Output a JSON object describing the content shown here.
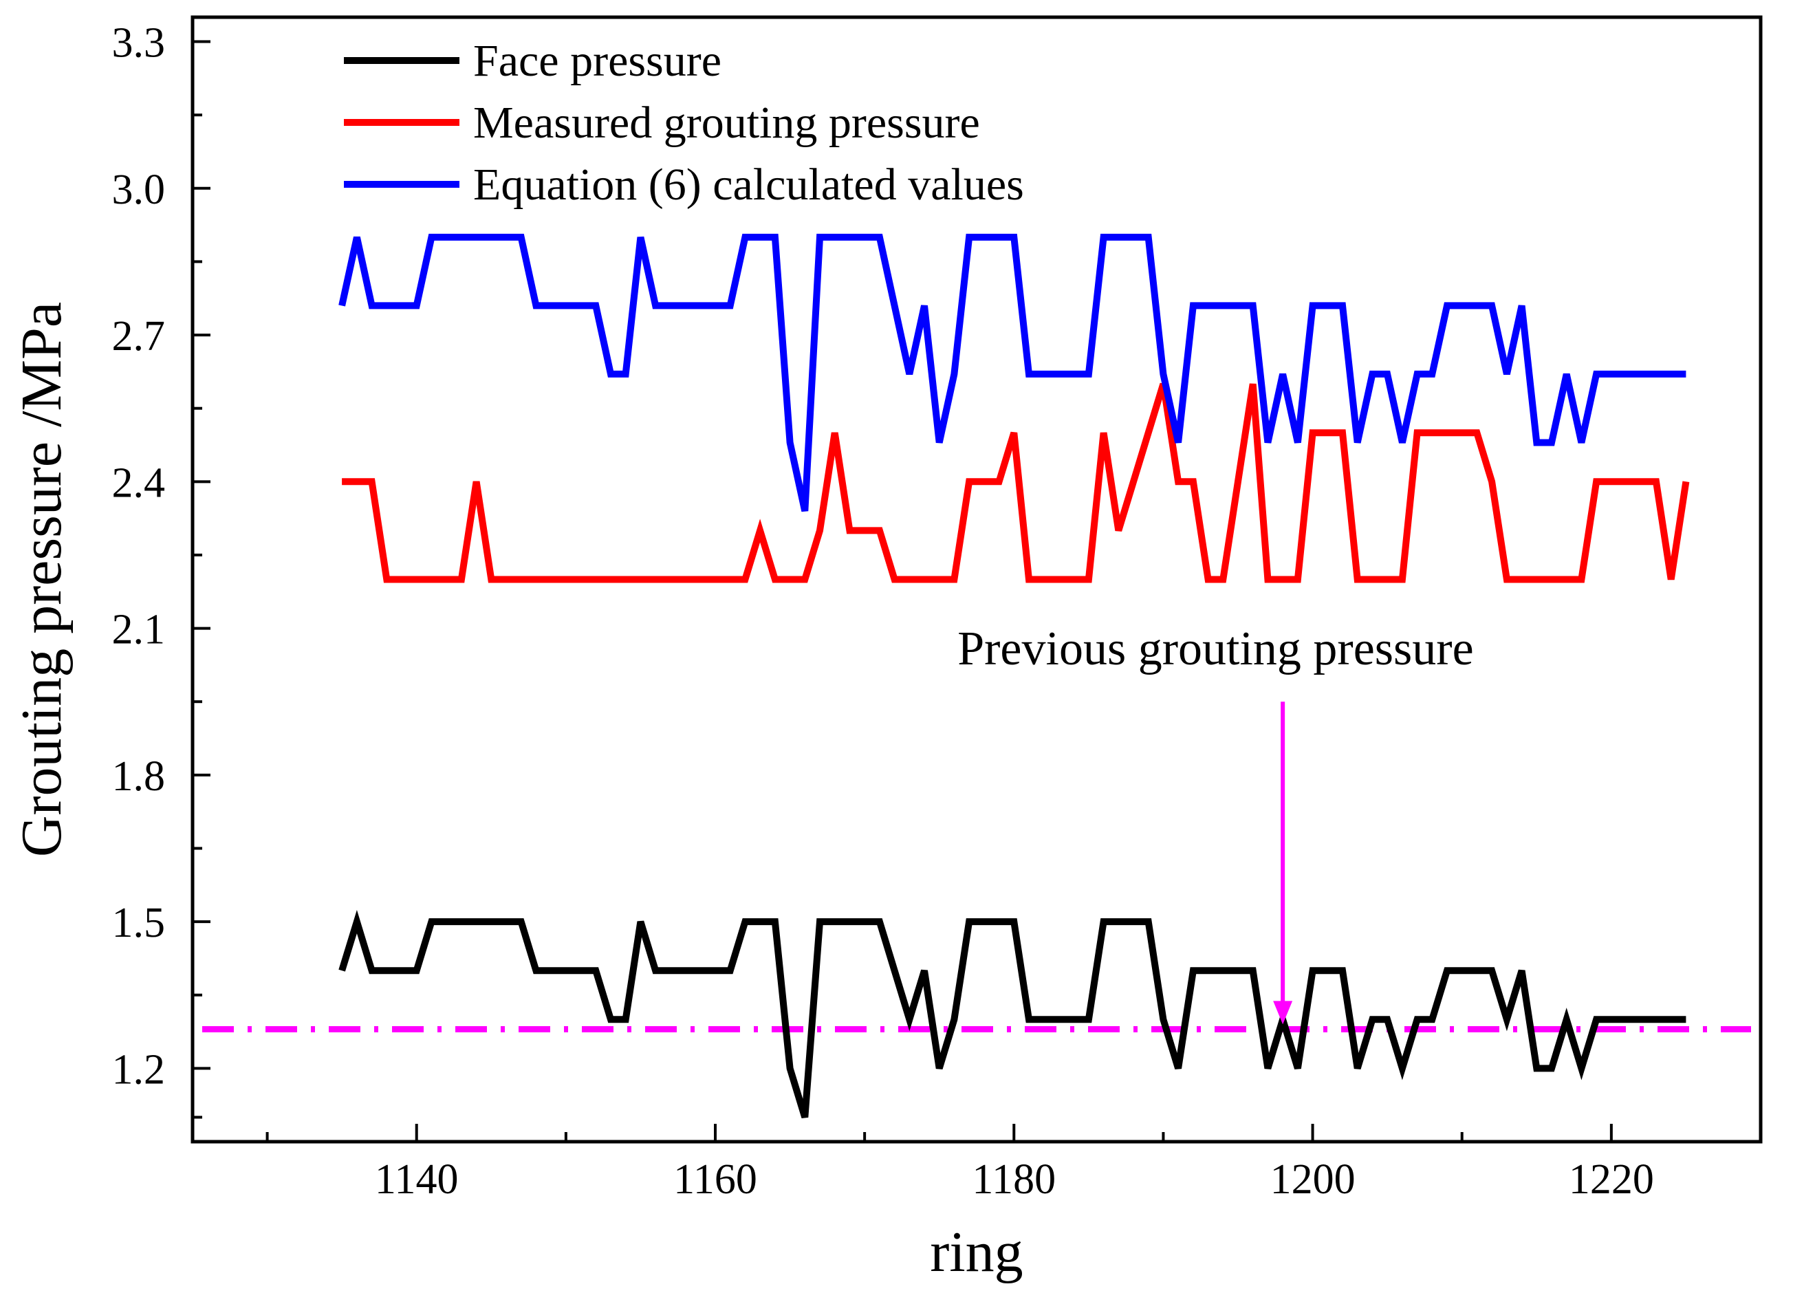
{
  "chart_data": {
    "type": "line",
    "xlabel": "ring",
    "ylabel": "Grouting pressure /MPa",
    "xlim": [
      1125,
      1230
    ],
    "ylim": [
      1.05,
      3.35
    ],
    "x_ticks": [
      1140,
      1160,
      1180,
      1200,
      1220
    ],
    "x_minor_ticks": [
      1130,
      1150,
      1170,
      1190,
      1210
    ],
    "y_ticks": [
      "1.2",
      "1.5",
      "1.8",
      "2.1",
      "2.4",
      "2.7",
      "3.0",
      "3.3"
    ],
    "y_minor_ticks": [
      1.1,
      1.35,
      1.65,
      1.95,
      2.25,
      2.55,
      2.85,
      3.15
    ],
    "legend_position": "top-left",
    "x": [
      1135,
      1136,
      1137,
      1138,
      1139,
      1140,
      1141,
      1142,
      1143,
      1144,
      1145,
      1146,
      1147,
      1148,
      1149,
      1150,
      1151,
      1152,
      1153,
      1154,
      1155,
      1156,
      1157,
      1158,
      1159,
      1160,
      1161,
      1162,
      1163,
      1164,
      1165,
      1166,
      1167,
      1168,
      1169,
      1170,
      1171,
      1172,
      1173,
      1174,
      1175,
      1176,
      1177,
      1178,
      1179,
      1180,
      1181,
      1182,
      1183,
      1184,
      1185,
      1186,
      1187,
      1188,
      1189,
      1190,
      1191,
      1192,
      1193,
      1194,
      1195,
      1196,
      1197,
      1198,
      1199,
      1200,
      1201,
      1202,
      1203,
      1204,
      1205,
      1206,
      1207,
      1208,
      1209,
      1210,
      1211,
      1212,
      1213,
      1214,
      1215,
      1216,
      1217,
      1218,
      1219,
      1220,
      1221,
      1222,
      1223,
      1224,
      1225
    ],
    "series": [
      {
        "name": "Face pressure",
        "color": "#000000",
        "values": [
          1.4,
          1.5,
          1.4,
          1.4,
          1.4,
          1.4,
          1.5,
          1.5,
          1.5,
          1.5,
          1.5,
          1.5,
          1.5,
          1.4,
          1.4,
          1.4,
          1.4,
          1.4,
          1.3,
          1.3,
          1.5,
          1.4,
          1.4,
          1.4,
          1.4,
          1.4,
          1.4,
          1.5,
          1.5,
          1.5,
          1.2,
          1.1,
          1.5,
          1.5,
          1.5,
          1.5,
          1.5,
          1.4,
          1.3,
          1.4,
          1.2,
          1.3,
          1.5,
          1.5,
          1.5,
          1.5,
          1.3,
          1.3,
          1.3,
          1.3,
          1.3,
          1.5,
          1.5,
          1.5,
          1.5,
          1.3,
          1.2,
          1.4,
          1.4,
          1.4,
          1.4,
          1.4,
          1.2,
          1.3,
          1.2,
          1.4,
          1.4,
          1.4,
          1.2,
          1.3,
          1.3,
          1.2,
          1.3,
          1.3,
          1.4,
          1.4,
          1.4,
          1.4,
          1.3,
          1.4,
          1.2,
          1.2,
          1.3,
          1.2,
          1.3,
          1.3,
          1.3,
          1.3,
          1.3,
          1.3,
          1.3
        ]
      },
      {
        "name": "Measured grouting pressure",
        "color": "#ff0000",
        "values": [
          2.4,
          2.4,
          2.4,
          2.2,
          2.2,
          2.2,
          2.2,
          2.2,
          2.2,
          2.4,
          2.2,
          2.2,
          2.2,
          2.2,
          2.2,
          2.2,
          2.2,
          2.2,
          2.2,
          2.2,
          2.2,
          2.2,
          2.2,
          2.2,
          2.2,
          2.2,
          2.2,
          2.2,
          2.3,
          2.2,
          2.2,
          2.2,
          2.3,
          2.5,
          2.3,
          2.3,
          2.3,
          2.2,
          2.2,
          2.2,
          2.2,
          2.2,
          2.4,
          2.4,
          2.4,
          2.5,
          2.2,
          2.2,
          2.2,
          2.2,
          2.2,
          2.5,
          2.3,
          2.4,
          2.5,
          2.6,
          2.4,
          2.4,
          2.2,
          2.2,
          2.4,
          2.6,
          2.2,
          2.2,
          2.2,
          2.5,
          2.5,
          2.5,
          2.2,
          2.2,
          2.2,
          2.2,
          2.5,
          2.5,
          2.5,
          2.5,
          2.5,
          2.4,
          2.2,
          2.2,
          2.2,
          2.2,
          2.2,
          2.2,
          2.4,
          2.4,
          2.4,
          2.4,
          2.4,
          2.2,
          2.4
        ]
      },
      {
        "name": "Equation (6) calculated values",
        "color": "#0000ff",
        "values": [
          2.76,
          2.9,
          2.76,
          2.76,
          2.76,
          2.76,
          2.9,
          2.9,
          2.9,
          2.9,
          2.9,
          2.9,
          2.9,
          2.76,
          2.76,
          2.76,
          2.76,
          2.76,
          2.62,
          2.62,
          2.9,
          2.76,
          2.76,
          2.76,
          2.76,
          2.76,
          2.76,
          2.9,
          2.9,
          2.9,
          2.48,
          2.34,
          2.9,
          2.9,
          2.9,
          2.9,
          2.9,
          2.76,
          2.62,
          2.76,
          2.48,
          2.62,
          2.9,
          2.9,
          2.9,
          2.9,
          2.62,
          2.62,
          2.62,
          2.62,
          2.62,
          2.9,
          2.9,
          2.9,
          2.9,
          2.62,
          2.48,
          2.76,
          2.76,
          2.76,
          2.76,
          2.76,
          2.48,
          2.62,
          2.48,
          2.76,
          2.76,
          2.76,
          2.48,
          2.62,
          2.62,
          2.48,
          2.62,
          2.62,
          2.76,
          2.76,
          2.76,
          2.76,
          2.62,
          2.76,
          2.48,
          2.48,
          2.62,
          2.48,
          2.62,
          2.62,
          2.62,
          2.62,
          2.62,
          2.62,
          2.62
        ]
      }
    ],
    "reference_line": {
      "name": "Previous grouting pressure",
      "value": 1.28,
      "color": "#ff00ff",
      "style": "dash-dot"
    },
    "annotation": {
      "text": "Previous grouting pressure",
      "arrow_x": 1198,
      "arrow_from_y": 1.95,
      "arrow_to_y": 1.29,
      "color": "#ff00ff"
    }
  }
}
